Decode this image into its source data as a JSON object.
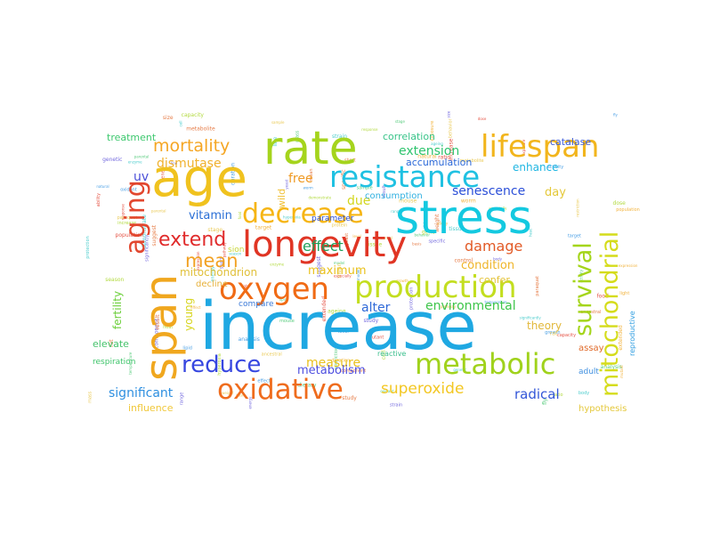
{
  "words": [
    {
      "text": "increase",
      "color": "#1fa8e2"
    },
    {
      "text": "age",
      "color": "#f0c21e"
    },
    {
      "text": "rate",
      "color": "#a5d41d"
    },
    {
      "text": "stress",
      "color": "#14c9e0"
    },
    {
      "text": "span",
      "color": "#f0a71e"
    },
    {
      "text": "longevity",
      "color": "#e03524"
    },
    {
      "text": "lifespan",
      "color": "#f2b51c"
    },
    {
      "text": "resistance",
      "color": "#1fc1e2"
    },
    {
      "text": "aging",
      "color": "#e2472f"
    },
    {
      "text": "oxygen",
      "color": "#f06a14"
    },
    {
      "text": "production",
      "color": "#c3de1f"
    },
    {
      "text": "decrease",
      "color": "#f6b514"
    },
    {
      "text": "mitochondrial",
      "color": "#d5dc1c"
    },
    {
      "text": "metabolic",
      "color": "#a0d21c"
    },
    {
      "text": "survival",
      "color": "#a4d51b"
    },
    {
      "text": "oxidative",
      "color": "#ef6c1d"
    },
    {
      "text": "reduce",
      "color": "#3747e0"
    },
    {
      "text": "extend",
      "color": "#e02b2b"
    },
    {
      "text": "mean",
      "color": "#f2a122"
    },
    {
      "text": "mortality",
      "color": "#f5a623"
    },
    {
      "text": "superoxide",
      "color": "#f3c722"
    },
    {
      "text": "dismutase",
      "color": "#f0b12e"
    },
    {
      "text": "damage",
      "color": "#e25a26"
    },
    {
      "text": "effect",
      "color": "#1fa05a"
    },
    {
      "text": "extension",
      "color": "#2ec46e"
    },
    {
      "text": "senescence",
      "color": "#2b4fd8"
    },
    {
      "text": "free",
      "color": "#ef9a24"
    },
    {
      "text": "due",
      "color": "#d3d61e"
    },
    {
      "text": "vitamin",
      "color": "#2a6fd6"
    },
    {
      "text": "measure",
      "color": "#e9c11d"
    },
    {
      "text": "metabolism",
      "color": "#4e4fe0"
    },
    {
      "text": "maximum",
      "color": "#e9c11d"
    },
    {
      "text": "condition",
      "color": "#efb52a"
    },
    {
      "text": "environmental",
      "color": "#3ec54a"
    },
    {
      "text": "alter",
      "color": "#2f69d8"
    },
    {
      "text": "radical",
      "color": "#3357d8"
    },
    {
      "text": "significant",
      "color": "#2e8fe0"
    },
    {
      "text": "mitochondrion",
      "color": "#e0c03a"
    },
    {
      "text": "fertility",
      "color": "#6ccf3a"
    },
    {
      "text": "young",
      "color": "#d7d51e"
    },
    {
      "text": "theory",
      "color": "#e2b83b"
    },
    {
      "text": "uv",
      "color": "#4b4fd8"
    },
    {
      "text": "day",
      "color": "#e4c838"
    },
    {
      "text": "enhance",
      "color": "#1fb6e2"
    },
    {
      "text": "accumulation",
      "color": "#2a68d8"
    },
    {
      "text": "correlation",
      "color": "#39c48a"
    },
    {
      "text": "catalase",
      "color": "#3d5bd8"
    },
    {
      "text": "treatment",
      "color": "#3ec86f"
    },
    {
      "text": "elevate",
      "color": "#45c36b"
    },
    {
      "text": "confer",
      "color": "#e4c33a"
    },
    {
      "text": "influence",
      "color": "#f0c83b"
    },
    {
      "text": "consumption",
      "color": "#30b0e0"
    },
    {
      "text": "wild",
      "color": "#f0c23b"
    },
    {
      "text": "decline",
      "color": "#e7b13a"
    },
    {
      "text": "compare",
      "color": "#3b7ad8"
    },
    {
      "text": "reactive",
      "color": "#3bbf8d"
    },
    {
      "text": "assay",
      "color": "#e06a2a"
    },
    {
      "text": "adult",
      "color": "#4090e0"
    },
    {
      "text": "hypothesis",
      "color": "#e4c83b"
    },
    {
      "text": "parameter",
      "color": "#2b4fd8"
    },
    {
      "text": "reproductive",
      "color": "#2d9ce0"
    },
    {
      "text": "respiration",
      "color": "#3ec46a"
    },
    {
      "text": "sion",
      "color": "#c8d63a"
    }
  ],
  "filler_words": [
    "model",
    "behavior",
    "metabolite",
    "suggest",
    "range",
    "hyperoxia",
    "gene",
    "population",
    "duration",
    "analysis",
    "stage",
    "basis",
    "component",
    "genetic",
    "cell",
    "response",
    "exposure",
    "level",
    "temperature",
    "protein",
    "control",
    "study",
    "strain",
    "tissue",
    "increase",
    "expression",
    "effect",
    "activity",
    "sample",
    "mean",
    "result",
    "body",
    "heat",
    "food",
    "light",
    "growth",
    "dietary",
    "restriction",
    "paraquat",
    "short",
    "protection",
    "ageing",
    "capacity",
    "ability",
    "natural",
    "oxidant",
    "parental",
    "ancestral",
    "specific",
    "significantly",
    "demonstrate",
    "especially",
    "extended",
    "target",
    "lipid",
    "mass",
    "weight",
    "size",
    "energy",
    "season",
    "dose",
    "mutant",
    "worm",
    "fly",
    "mouse",
    "rat",
    "yeast",
    "line",
    "enzyme",
    "ratio",
    "pathway"
  ]
}
